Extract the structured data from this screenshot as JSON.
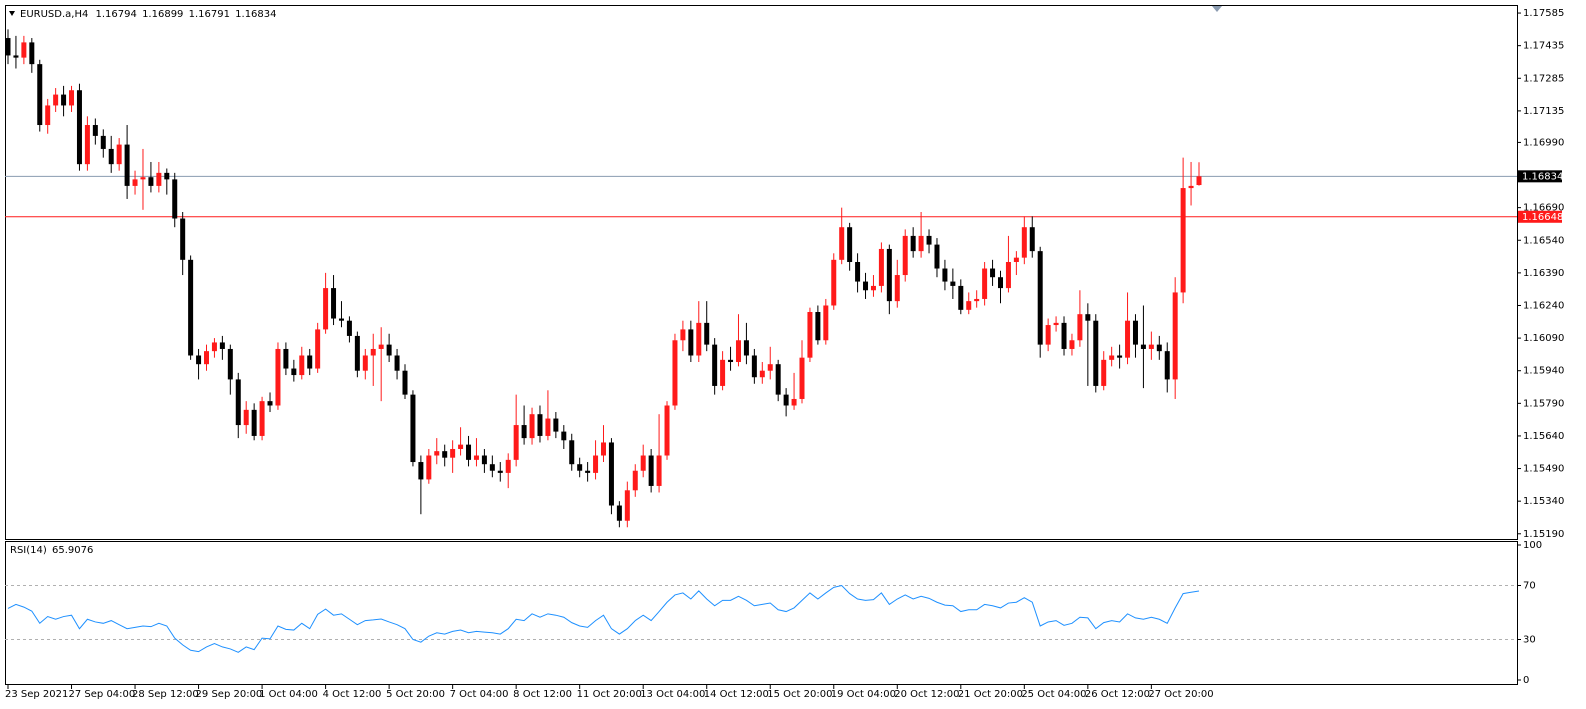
{
  "chart_data": [
    {
      "type": "candlestick",
      "title": "EURUSD.a,H4",
      "categories": [
        "23 Sep 2021",
        null,
        null,
        null,
        null,
        null,
        null,
        null,
        "27 Sep 04:00",
        null,
        null,
        null,
        null,
        null,
        null,
        null,
        "28 Sep 12:00",
        null,
        null,
        null,
        null,
        null,
        null,
        null,
        "29 Sep 20:00",
        null,
        null,
        null,
        null,
        null,
        null,
        null,
        "1 Oct 04:00",
        null,
        null,
        null,
        null,
        null,
        null,
        null,
        "4 Oct 12:00",
        null,
        null,
        null,
        null,
        null,
        null,
        null,
        "5 Oct 20:00",
        null,
        null,
        null,
        null,
        null,
        null,
        null,
        "7 Oct 04:00",
        null,
        null,
        null,
        null,
        null,
        null,
        null,
        "8 Oct 12:00",
        null,
        null,
        null,
        null,
        null,
        null,
        null,
        "11 Oct 20:00",
        null,
        null,
        null,
        null,
        null,
        null,
        null,
        "13 Oct 04:00",
        null,
        null,
        null,
        null,
        null,
        null,
        null,
        "14 Oct 12:00",
        null,
        null,
        null,
        null,
        null,
        null,
        null,
        "15 Oct 20:00",
        null,
        null,
        null,
        null,
        null,
        null,
        null,
        "19 Oct 04:00",
        null,
        null,
        null,
        null,
        null,
        null,
        null,
        "20 Oct 12:00",
        null,
        null,
        null,
        null,
        null,
        null,
        null,
        "21 Oct 20:00",
        null,
        null,
        null,
        null,
        null,
        null,
        null,
        "25 Oct 04:00",
        null,
        null,
        null,
        null,
        null,
        null,
        null,
        "26 Oct 12:00",
        null,
        null,
        null,
        null,
        null,
        null,
        null,
        "27 Oct 20:00",
        null,
        null,
        null,
        null,
        null,
        null
      ],
      "open": [
        1.1747,
        1.1739,
        1.1738,
        1.1745,
        1.1735,
        1.1707,
        1.1716,
        1.1721,
        1.1716,
        1.1723,
        1.1689,
        1.1707,
        1.1702,
        1.1696,
        1.1689,
        1.1698,
        1.1679,
        1.1682,
        1.1683,
        1.1679,
        1.1685,
        1.1682,
        1.1664,
        1.1645,
        1.1601,
        1.1597,
        1.1603,
        1.1607,
        1.1604,
        1.159,
        1.1569,
        1.1576,
        1.1564,
        1.158,
        1.1578,
        1.1604,
        1.1595,
        1.1592,
        1.1601,
        1.1595,
        1.1613,
        1.1632,
        1.1618,
        1.1617,
        1.161,
        1.1594,
        1.1601,
        1.1604,
        1.1606,
        1.1601,
        1.1594,
        1.1583,
        1.1552,
        1.1544,
        1.1555,
        1.1557,
        1.1554,
        1.1558,
        1.156,
        1.1553,
        1.1555,
        1.1551,
        1.1548,
        1.1547,
        1.1553,
        1.1569,
        1.1563,
        1.1574,
        1.1564,
        1.1572,
        1.1566,
        1.1562,
        1.1551,
        1.1548,
        1.1547,
        1.1555,
        1.1561,
        1.1532,
        1.1525,
        1.1539,
        1.1548,
        1.1555,
        1.1541,
        1.1555,
        1.1578,
        1.1608,
        1.1613,
        1.1601,
        1.1616,
        1.1606,
        1.1587,
        1.1599,
        1.1598,
        1.1608,
        1.1601,
        1.1591,
        1.1594,
        1.1597,
        1.1583,
        1.1578,
        1.1581,
        1.16,
        1.1621,
        1.1608,
        1.1624,
        1.1645,
        1.166,
        1.1644,
        1.1635,
        1.1631,
        1.1633,
        1.165,
        1.1626,
        1.1638,
        1.1656,
        1.1649,
        1.1656,
        1.1652,
        1.1641,
        1.1635,
        1.1633,
        1.1622,
        1.1626,
        1.1627,
        1.1641,
        1.1637,
        1.1632,
        1.1644,
        1.1646,
        1.166,
        1.1649,
        1.1606,
        1.1615,
        1.1616,
        1.1604,
        1.1608,
        1.162,
        1.1617,
        1.1587,
        1.1599,
        1.1601,
        1.16,
        1.1617,
        1.1606,
        1.1604,
        1.1606,
        1.1603,
        1.159,
        1.163,
        1.1678,
        1.16794
      ],
      "high": [
        1.1751,
        1.1748,
        1.1748,
        1.1747,
        1.1737,
        1.1719,
        1.1724,
        1.1725,
        1.1725,
        1.1726,
        1.1711,
        1.171,
        1.1705,
        1.1702,
        1.1701,
        1.1707,
        1.1686,
        1.1696,
        1.169,
        1.169,
        1.1687,
        1.1685,
        1.1667,
        1.1647,
        1.1604,
        1.1606,
        1.1609,
        1.161,
        1.1606,
        1.1593,
        1.158,
        1.1579,
        1.1582,
        1.1584,
        1.1607,
        1.1607,
        1.1599,
        1.1605,
        1.1604,
        1.1616,
        1.1639,
        1.1638,
        1.1626,
        1.1619,
        1.1612,
        1.1604,
        1.1611,
        1.1614,
        1.1611,
        1.1604,
        1.1597,
        1.1585,
        1.1555,
        1.1558,
        1.1563,
        1.156,
        1.1562,
        1.1568,
        1.1564,
        1.1563,
        1.1558,
        1.1555,
        1.1552,
        1.1556,
        1.1583,
        1.1578,
        1.1577,
        1.1578,
        1.1585,
        1.1575,
        1.1569,
        1.1565,
        1.1554,
        1.1552,
        1.1562,
        1.1569,
        1.1563,
        1.1534,
        1.1543,
        1.1551,
        1.156,
        1.1558,
        1.1574,
        1.158,
        1.1611,
        1.1617,
        1.1617,
        1.1626,
        1.1626,
        1.1609,
        1.1603,
        1.1605,
        1.162,
        1.1616,
        1.1604,
        1.1598,
        1.1605,
        1.1599,
        1.1586,
        1.1593,
        1.1608,
        1.1623,
        1.1624,
        1.1627,
        1.1648,
        1.1669,
        1.1662,
        1.1648,
        1.1639,
        1.1638,
        1.1653,
        1.1652,
        1.1645,
        1.1659,
        1.166,
        1.1667,
        1.1659,
        1.1655,
        1.1645,
        1.1641,
        1.1636,
        1.163,
        1.1631,
        1.1644,
        1.1645,
        1.164,
        1.1656,
        1.1649,
        1.1665,
        1.1665,
        1.1651,
        1.1618,
        1.1619,
        1.1619,
        1.1611,
        1.1631,
        1.1625,
        1.162,
        1.1603,
        1.1605,
        1.1606,
        1.163,
        1.162,
        1.1624,
        1.1612,
        1.161,
        1.1607,
        1.1637,
        1.1692,
        1.169,
        1.16899
      ],
      "low": [
        1.1735,
        1.1733,
        1.1735,
        1.1731,
        1.1704,
        1.1703,
        1.1713,
        1.1711,
        1.1713,
        1.1686,
        1.1686,
        1.1698,
        1.1692,
        1.1685,
        1.1686,
        1.1673,
        1.1675,
        1.1668,
        1.1676,
        1.1676,
        1.1675,
        1.166,
        1.1638,
        1.1599,
        1.159,
        1.1594,
        1.16,
        1.1599,
        1.1583,
        1.1563,
        1.1565,
        1.1562,
        1.1562,
        1.1575,
        1.1576,
        1.1592,
        1.1589,
        1.159,
        1.1592,
        1.1593,
        1.1611,
        1.1615,
        1.1614,
        1.1607,
        1.1591,
        1.159,
        1.1587,
        1.158,
        1.1598,
        1.159,
        1.1581,
        1.155,
        1.1528,
        1.1542,
        1.1551,
        1.155,
        1.1547,
        1.1555,
        1.155,
        1.155,
        1.1547,
        1.1545,
        1.1543,
        1.154,
        1.155,
        1.156,
        1.156,
        1.1561,
        1.1562,
        1.1563,
        1.1558,
        1.1548,
        1.1545,
        1.1543,
        1.1544,
        1.1552,
        1.1528,
        1.1522,
        1.1522,
        1.1536,
        1.1545,
        1.1538,
        1.1538,
        1.1553,
        1.1576,
        1.1603,
        1.1598,
        1.1598,
        1.1603,
        1.1583,
        1.1585,
        1.1594,
        1.1596,
        1.1597,
        1.1588,
        1.1588,
        1.159,
        1.158,
        1.1573,
        1.1576,
        1.1579,
        1.1598,
        1.1606,
        1.1606,
        1.1622,
        1.1643,
        1.164,
        1.163,
        1.1627,
        1.1628,
        1.163,
        1.162,
        1.1623,
        1.1635,
        1.1646,
        1.1646,
        1.1648,
        1.1637,
        1.1631,
        1.1627,
        1.162,
        1.162,
        1.1623,
        1.1624,
        1.1633,
        1.1625,
        1.163,
        1.1638,
        1.1643,
        1.1646,
        1.16,
        1.1603,
        1.1612,
        1.1601,
        1.1601,
        1.1605,
        1.1587,
        1.1584,
        1.1585,
        1.1596,
        1.1595,
        1.1597,
        1.16,
        1.1586,
        1.1599,
        1.1599,
        1.1584,
        1.1581,
        1.1625,
        1.167,
        1.16791
      ],
      "close": [
        1.1739,
        1.1738,
        1.1745,
        1.1735,
        1.1707,
        1.1716,
        1.1721,
        1.1716,
        1.1723,
        1.1689,
        1.1707,
        1.1702,
        1.1696,
        1.1689,
        1.1698,
        1.1679,
        1.1682,
        1.1683,
        1.1679,
        1.1685,
        1.1682,
        1.1664,
        1.1645,
        1.1601,
        1.1597,
        1.1603,
        1.1607,
        1.1604,
        1.159,
        1.1569,
        1.1576,
        1.1564,
        1.158,
        1.1578,
        1.1604,
        1.1595,
        1.1592,
        1.1601,
        1.1595,
        1.1613,
        1.1632,
        1.1618,
        1.1617,
        1.161,
        1.1594,
        1.1601,
        1.1604,
        1.1606,
        1.1601,
        1.1594,
        1.1583,
        1.1552,
        1.1544,
        1.1555,
        1.1557,
        1.1554,
        1.1558,
        1.156,
        1.1553,
        1.1555,
        1.1551,
        1.1548,
        1.1547,
        1.1553,
        1.1569,
        1.1563,
        1.1574,
        1.1564,
        1.1572,
        1.1566,
        1.1562,
        1.1551,
        1.1548,
        1.1547,
        1.1555,
        1.1561,
        1.1532,
        1.1525,
        1.1539,
        1.1548,
        1.1555,
        1.1541,
        1.1555,
        1.1578,
        1.1608,
        1.1613,
        1.1601,
        1.1616,
        1.1606,
        1.1587,
        1.1599,
        1.1598,
        1.1608,
        1.1601,
        1.1591,
        1.1594,
        1.1597,
        1.1583,
        1.1578,
        1.1581,
        1.16,
        1.1621,
        1.1608,
        1.1624,
        1.1645,
        1.166,
        1.1644,
        1.1635,
        1.1631,
        1.1633,
        1.165,
        1.1626,
        1.1638,
        1.1656,
        1.1649,
        1.1656,
        1.1652,
        1.1641,
        1.1635,
        1.1633,
        1.1622,
        1.1626,
        1.1627,
        1.1641,
        1.1637,
        1.1632,
        1.1644,
        1.1646,
        1.166,
        1.1649,
        1.1606,
        1.1615,
        1.1616,
        1.1604,
        1.1608,
        1.162,
        1.1617,
        1.1587,
        1.1599,
        1.1601,
        1.16,
        1.1617,
        1.1606,
        1.1604,
        1.1606,
        1.1603,
        1.159,
        1.163,
        1.1678,
        1.1679,
        1.16834
      ],
      "up_color": "#ff1a1a",
      "down_color": "#000000",
      "price_line_color": "#8a9bb0",
      "ylim": [
        1.15166,
        1.17622
      ],
      "yticks": [
        1.17585,
        1.17435,
        1.17285,
        1.17135,
        {
          "value": 1.1699,
          "label": "1.16990"
        },
        {
          "value": 1.1669,
          "label": "1.16690"
        },
        {
          "value": 1.1654,
          "label": "1.16540"
        },
        {
          "value": 1.1639,
          "label": "1.16390"
        },
        {
          "value": 1.1624,
          "label": "1.16240"
        },
        {
          "value": 1.1609,
          "label": "1.16090"
        },
        {
          "value": 1.1594,
          "label": "1.15940"
        },
        {
          "value": 1.1579,
          "label": "1.15790"
        },
        {
          "value": 1.1564,
          "label": "1.15640"
        },
        {
          "value": 1.1549,
          "label": "1.15490"
        },
        {
          "value": 1.1534,
          "label": "1.15340"
        },
        {
          "value": 1.1519,
          "label": "1.15190"
        }
      ],
      "level": {
        "value": 1.16648,
        "color": "#ff1a1a"
      }
    },
    {
      "type": "line",
      "title": "RSI(14)",
      "color": "#1e90ff",
      "values": [
        53,
        56,
        54,
        51,
        42,
        47,
        45,
        47,
        48,
        38,
        45,
        43,
        42,
        44,
        41,
        38,
        39,
        40,
        39.5,
        42,
        40,
        31,
        26,
        22,
        21,
        24.5,
        27,
        24.5,
        23,
        20.5,
        24.5,
        22.5,
        31,
        30.5,
        40,
        37.5,
        37,
        42,
        38,
        48.6,
        52.5,
        48,
        49,
        45,
        41,
        44,
        44.5,
        45.2,
        43,
        41,
        38,
        30,
        28,
        32.5,
        35,
        34,
        36,
        37,
        35,
        36,
        35.5,
        35,
        34,
        38,
        45,
        44,
        49,
        46.5,
        49,
        48,
        46.5,
        42.5,
        40,
        39,
        44,
        48,
        38,
        34,
        38,
        44,
        48,
        44,
        50.7,
        57.6,
        63,
        64.5,
        60,
        66,
        60,
        55,
        59,
        59,
        62,
        59,
        55,
        56,
        57,
        52,
        50.7,
        53.4,
        59,
        64.5,
        60,
        64.5,
        68.6,
        70,
        64,
        60,
        59,
        59.5,
        64.5,
        56,
        60,
        63,
        60,
        62,
        60.5,
        57.6,
        55.5,
        55,
        50.7,
        52,
        52,
        56,
        55,
        53.4,
        57,
        57.6,
        61,
        57.6,
        40,
        43,
        44,
        40.5,
        42,
        46.5,
        46,
        38,
        42.5,
        44,
        43,
        49,
        46,
        45,
        46.5,
        45,
        42,
        53.4,
        64,
        65,
        65.9076
      ],
      "ylim": [
        0,
        100
      ],
      "yticks": [
        0,
        30,
        70,
        100
      ]
    }
  ]
}
